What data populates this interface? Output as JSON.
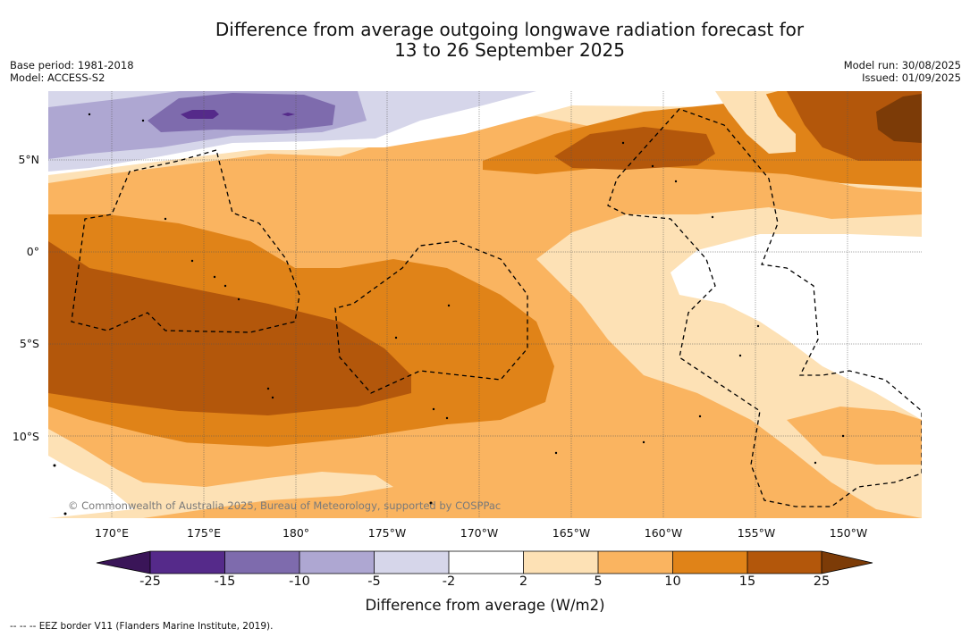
{
  "title": {
    "line1": "Difference from average outgoing longwave radiation forecast for",
    "line2": "13 to 26 September 2025"
  },
  "meta_left": {
    "base_period": "Base period: 1981-2018",
    "model": "Model: ACCESS-S2"
  },
  "meta_right": {
    "model_run": "Model run: 30/08/2025",
    "issued": "Issued: 01/09/2025"
  },
  "map": {
    "longitude_labels": [
      "170°E",
      "175°E",
      "180°",
      "175°W",
      "170°W",
      "165°W",
      "160°W",
      "155°W",
      "150°W"
    ],
    "latitude_labels": [
      "5°N",
      "0°",
      "5°S",
      "10°S"
    ],
    "credit": "© Commonwealth of Australia 2025, Bureau of Meteorology, supported by COSPPac"
  },
  "colorbar": {
    "title": "Difference from average (W/m2)",
    "tick_labels": [
      "-25",
      "-15",
      "-10",
      "-5",
      "-2",
      "2",
      "5",
      "10",
      "15",
      "25"
    ],
    "colors": [
      "#3a1558",
      "#552a8a",
      "#7e6bad",
      "#aea7d2",
      "#d6d6ea",
      "#ffffff",
      "#fde1b5",
      "#fab460",
      "#e08318",
      "#b3570b",
      "#7c3b07"
    ]
  },
  "legend": {
    "eez": "--  --  -- EEZ border V11 (Flanders Marine Institute, 2019)."
  }
}
